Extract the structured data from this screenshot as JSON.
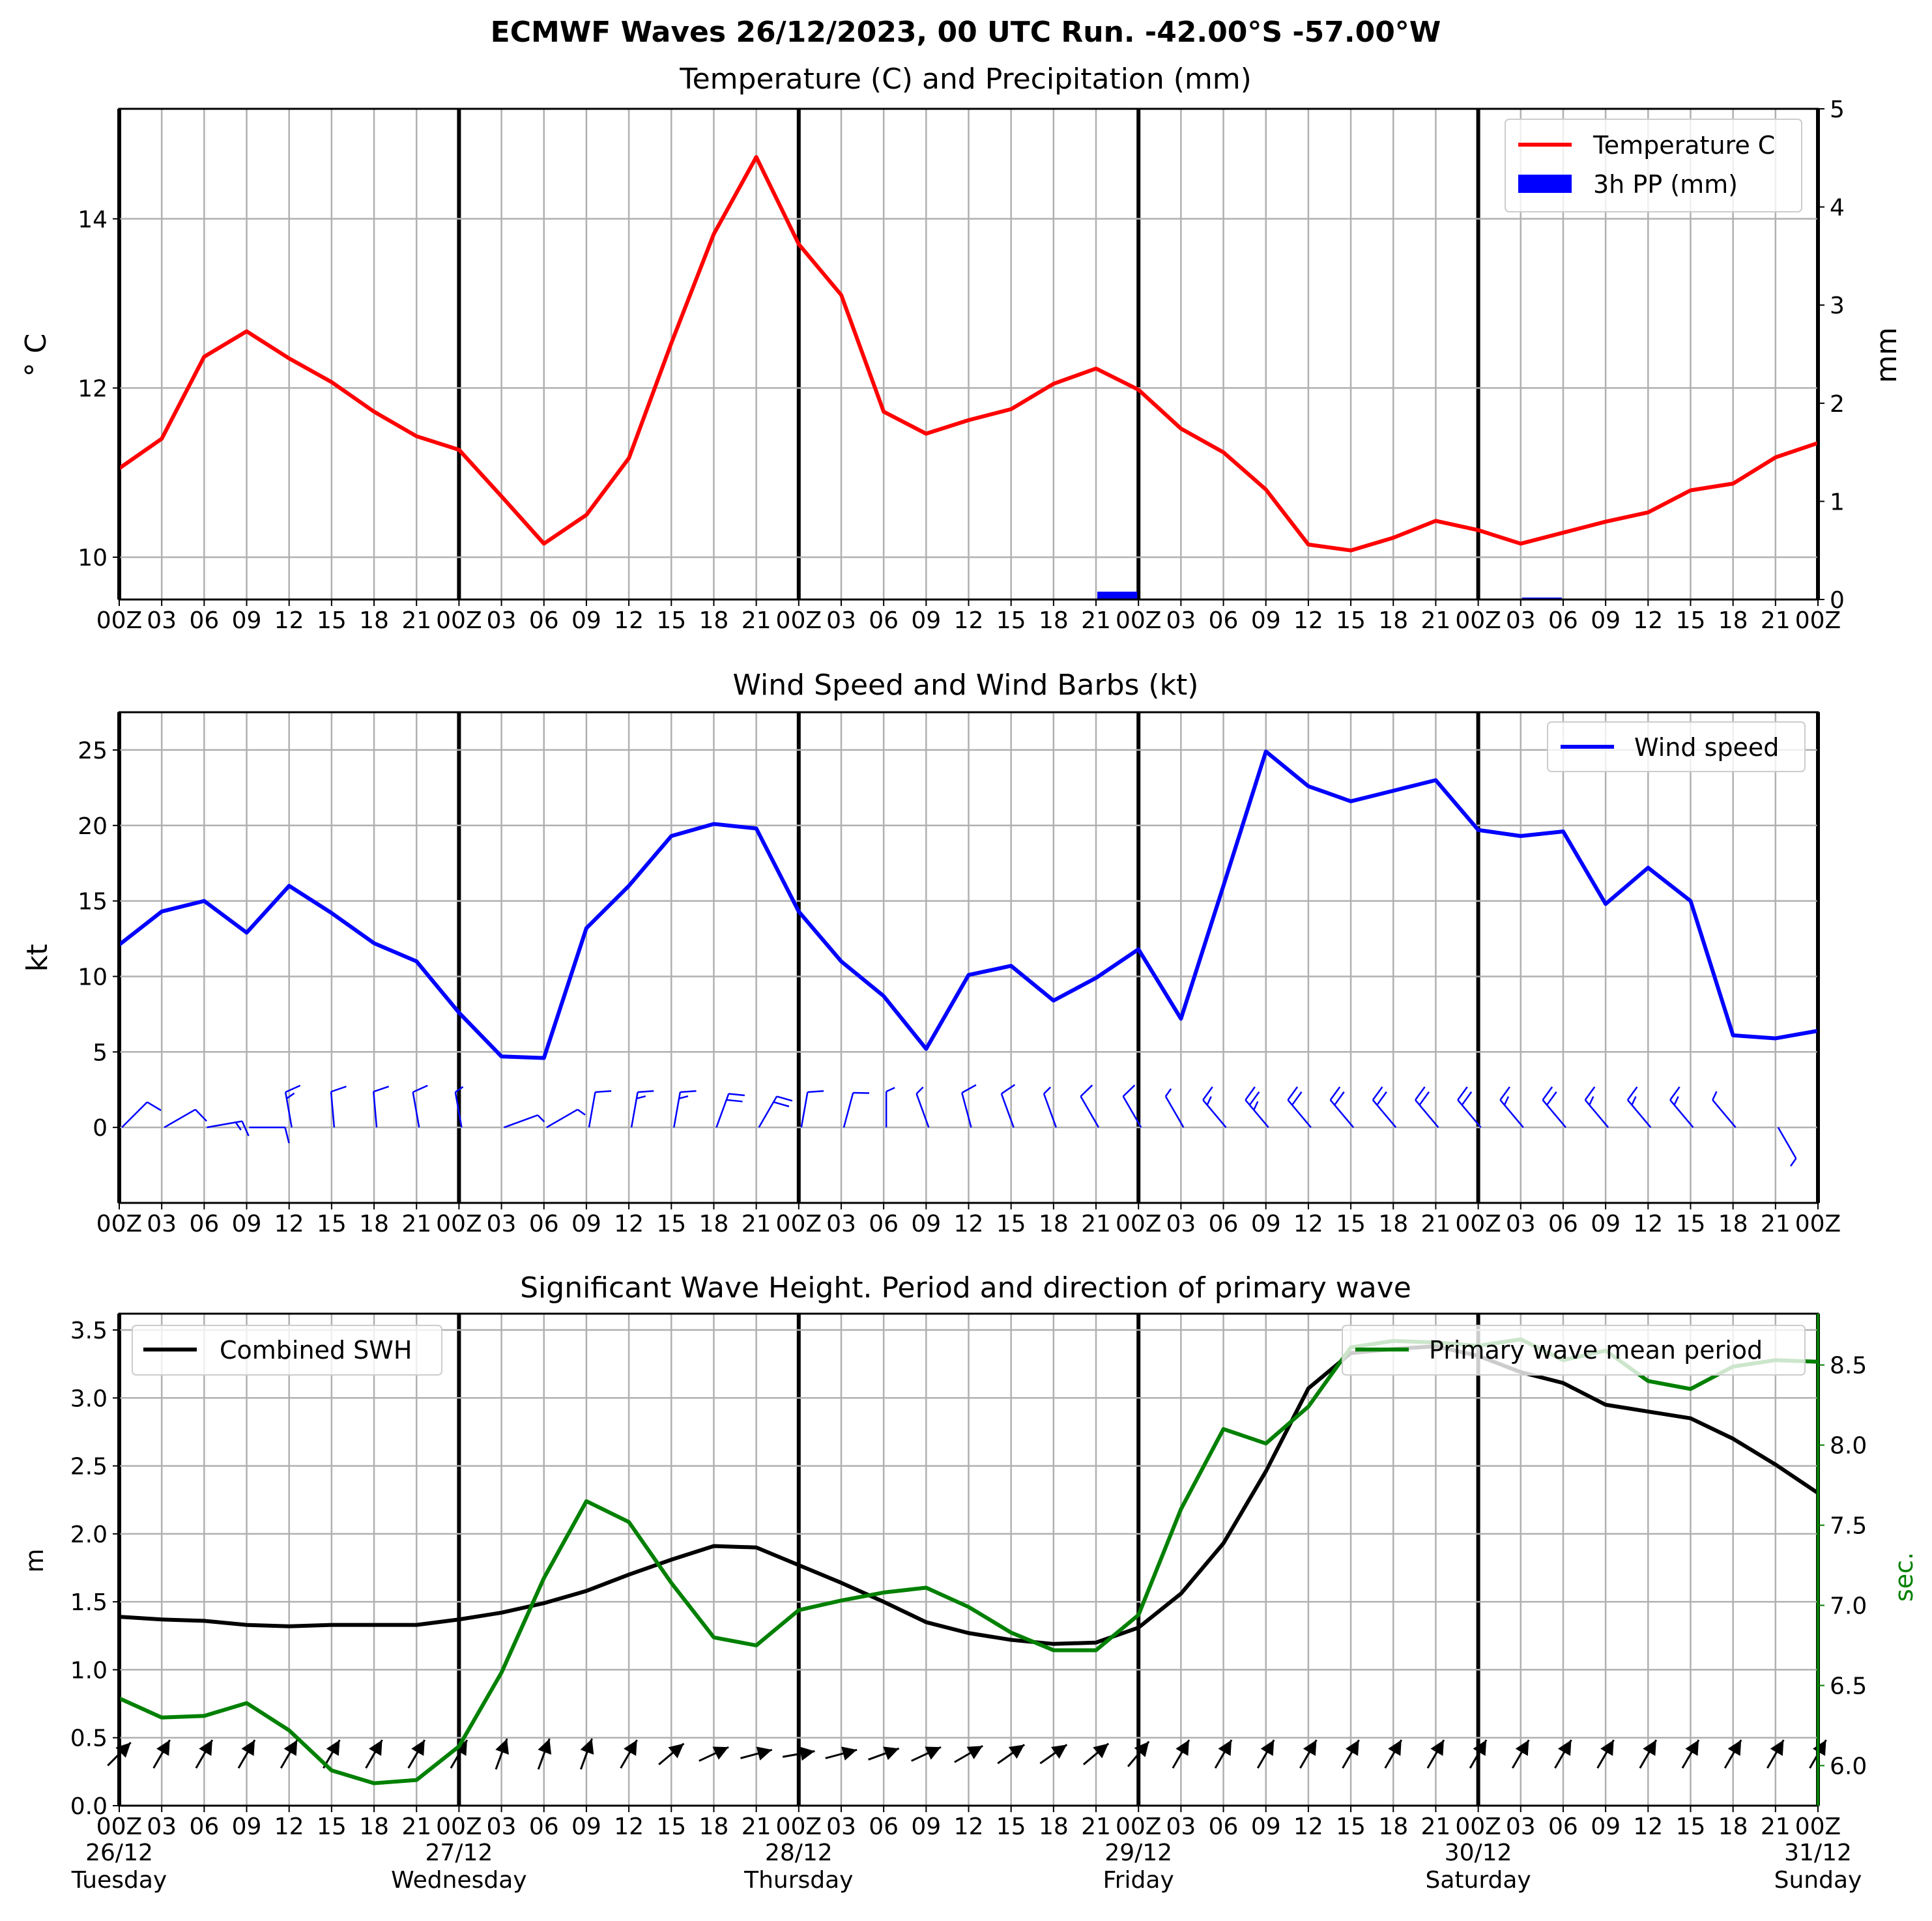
{
  "suptitle": "ECMWF Waves 26/12/2023, 00 UTC Run. -42.00°S -57.00°W",
  "colors": {
    "temperature": "#ff0000",
    "precip": "#0000ff",
    "wind": "#0000ff",
    "barbs": "#0000ff",
    "swh": "#000000",
    "period": "#008000",
    "grid": "#b0b0b0"
  },
  "time_axis": {
    "hour_labels": [
      "00Z",
      "03",
      "06",
      "09",
      "12",
      "15",
      "18",
      "21",
      "00Z",
      "03",
      "06",
      "09",
      "12",
      "15",
      "18",
      "21",
      "00Z",
      "03",
      "06",
      "09",
      "12",
      "15",
      "18",
      "21",
      "00Z",
      "03",
      "06",
      "09",
      "12",
      "15",
      "18",
      "21",
      "00Z",
      "03",
      "06",
      "09",
      "12",
      "15",
      "18",
      "21",
      "00Z"
    ],
    "day_dates": [
      "26/12",
      "27/12",
      "28/12",
      "29/12",
      "30/12",
      "31/12"
    ],
    "day_names": [
      "Tuesday",
      "Wednesday",
      "Thursday",
      "Friday",
      "Saturday",
      "Sunday"
    ]
  },
  "chart_data": [
    {
      "type": "line",
      "title": "Temperature (C) and Precipitation (mm)",
      "ylabel": "° C",
      "ylabel_right": "mm",
      "ylim": [
        9.5,
        15.3
      ],
      "ylim_right": [
        0,
        5
      ],
      "yticks": [
        10,
        12,
        14
      ],
      "yticks_right": [
        0,
        1,
        2,
        3,
        4,
        5
      ],
      "grid": true,
      "legend": "top-right",
      "series": [
        {
          "name": "Temperature C",
          "values": [
            11.05,
            11.4,
            12.37,
            12.67,
            12.35,
            12.07,
            11.72,
            11.43,
            11.27,
            10.72,
            10.16,
            10.5,
            11.17,
            12.53,
            13.82,
            14.73,
            13.7,
            13.1,
            11.72,
            11.46,
            11.62,
            11.75,
            12.05,
            12.23,
            11.98,
            11.52,
            11.24,
            10.8,
            10.15,
            10.08,
            10.23,
            10.43,
            10.32,
            10.16,
            10.29,
            10.42,
            10.53,
            10.79,
            10.87,
            11.18,
            11.35
          ]
        }
      ],
      "bars": {
        "name": "3h PP (mm)",
        "values": [
          0,
          0,
          0,
          0,
          0,
          0,
          0,
          0,
          0,
          0,
          0,
          0,
          0,
          0,
          0,
          0,
          0,
          0,
          0,
          0,
          0,
          0,
          0,
          0.08,
          0,
          0,
          0,
          0.01,
          0,
          0,
          0,
          0,
          0.01,
          0.02,
          0,
          0.01,
          0,
          0,
          0,
          0
        ]
      }
    },
    {
      "type": "line",
      "title": "Wind Speed and Wind Barbs (kt)",
      "ylabel": "kt",
      "ylim": [
        -5,
        27.5
      ],
      "yticks": [
        0,
        5,
        10,
        15,
        20,
        25
      ],
      "grid": true,
      "legend": "top-right",
      "series": [
        {
          "name": "Wind speed",
          "values": [
            12.1,
            14.3,
            15.0,
            12.9,
            16.0,
            14.2,
            12.2,
            11.0,
            7.6,
            4.7,
            4.6,
            13.2,
            16.0,
            19.3,
            20.1,
            19.8,
            14.3,
            11.0,
            8.7,
            5.2,
            10.1,
            10.7,
            8.4,
            9.9,
            11.8,
            7.2,
            16.0,
            24.9,
            22.6,
            21.6,
            22.3,
            23.0,
            19.7,
            19.3,
            19.6,
            14.8,
            17.2,
            15.0,
            6.1,
            5.9,
            6.4
          ]
        }
      ],
      "barb_directions_deg": [
        45,
        60,
        80,
        90,
        350,
        355,
        355,
        350,
        350,
        70,
        60,
        10,
        10,
        10,
        20,
        30,
        10,
        15,
        0,
        340,
        345,
        340,
        340,
        330,
        330,
        330,
        320,
        320,
        320,
        320,
        320,
        320,
        320,
        320,
        320,
        320,
        320,
        320,
        320,
        150
      ],
      "barb_speeds_kt": [
        12,
        14,
        15,
        13,
        16,
        14,
        12,
        11,
        8,
        5,
        5,
        13,
        16,
        19,
        20,
        20,
        14,
        11,
        9,
        5,
        10,
        11,
        8,
        10,
        12,
        7,
        16,
        25,
        23,
        22,
        22,
        23,
        20,
        19,
        20,
        15,
        17,
        15,
        6,
        6
      ]
    },
    {
      "type": "line",
      "title": "Significant Wave Height. Period and direction of primary wave",
      "ylabel": "m",
      "ylabel_right": "sec.",
      "ylim": [
        0,
        3.62
      ],
      "ylim_right": [
        5.75,
        8.82
      ],
      "yticks": [
        0.0,
        0.5,
        1.0,
        1.5,
        2.0,
        2.5,
        3.0,
        3.5
      ],
      "yticks_right": [
        6.0,
        6.5,
        7.0,
        7.5,
        8.0,
        8.5
      ],
      "grid": true,
      "legend": [
        "top-left",
        "top-right"
      ],
      "series": [
        {
          "name": "Combined SWH",
          "values": [
            1.39,
            1.37,
            1.36,
            1.33,
            1.32,
            1.33,
            1.33,
            1.33,
            1.37,
            1.42,
            1.49,
            1.58,
            1.7,
            1.81,
            1.91,
            1.9,
            1.77,
            1.64,
            1.5,
            1.35,
            1.27,
            1.22,
            1.19,
            1.2,
            1.31,
            1.56,
            1.93,
            2.46,
            3.07,
            3.33,
            3.36,
            3.38,
            3.31,
            3.19,
            3.11,
            2.95,
            2.9,
            2.85,
            2.7,
            2.51,
            2.3
          ]
        },
        {
          "name": "Primary wave mean period",
          "axis": "right",
          "values": [
            6.42,
            6.3,
            6.31,
            6.39,
            6.22,
            5.97,
            5.89,
            5.91,
            6.12,
            6.58,
            7.17,
            7.65,
            7.52,
            7.14,
            6.8,
            6.75,
            6.97,
            7.03,
            7.08,
            7.11,
            6.99,
            6.83,
            6.72,
            6.72,
            6.94,
            7.6,
            8.1,
            8.01,
            8.24,
            8.61,
            8.65,
            8.64,
            8.62,
            8.66,
            8.53,
            8.59,
            8.4,
            8.35,
            8.49,
            8.53,
            8.52
          ]
        }
      ],
      "wave_directions_deg": [
        225,
        210,
        210,
        210,
        210,
        210,
        210,
        210,
        210,
        200,
        200,
        200,
        210,
        230,
        245,
        255,
        260,
        255,
        250,
        245,
        240,
        235,
        235,
        230,
        220,
        210,
        210,
        210,
        210,
        210,
        210,
        210,
        210,
        210,
        210,
        210,
        210,
        210,
        210,
        210,
        210
      ]
    }
  ]
}
